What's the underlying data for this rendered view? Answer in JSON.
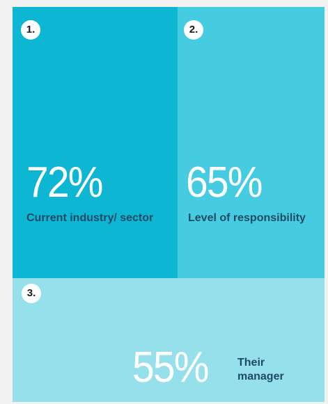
{
  "colors": {
    "background": "#f2f2f2",
    "tile_1": "#0db6d2",
    "tile_2": "#46cce0",
    "tile_3": "#96e0ec",
    "label_text": "#1d4a66",
    "percent_text": "#ffffff",
    "badge_bg": "#ffffff"
  },
  "chart_data": {
    "type": "treemap",
    "title": "",
    "items": [
      {
        "rank": "1.",
        "percent": "72%",
        "value": 72,
        "label": "Current industry/ sector"
      },
      {
        "rank": "2.",
        "percent": "65%",
        "value": 65,
        "label": "Level of responsibility"
      },
      {
        "rank": "3.",
        "percent": "55%",
        "value": 55,
        "label": "Their manager"
      }
    ]
  }
}
